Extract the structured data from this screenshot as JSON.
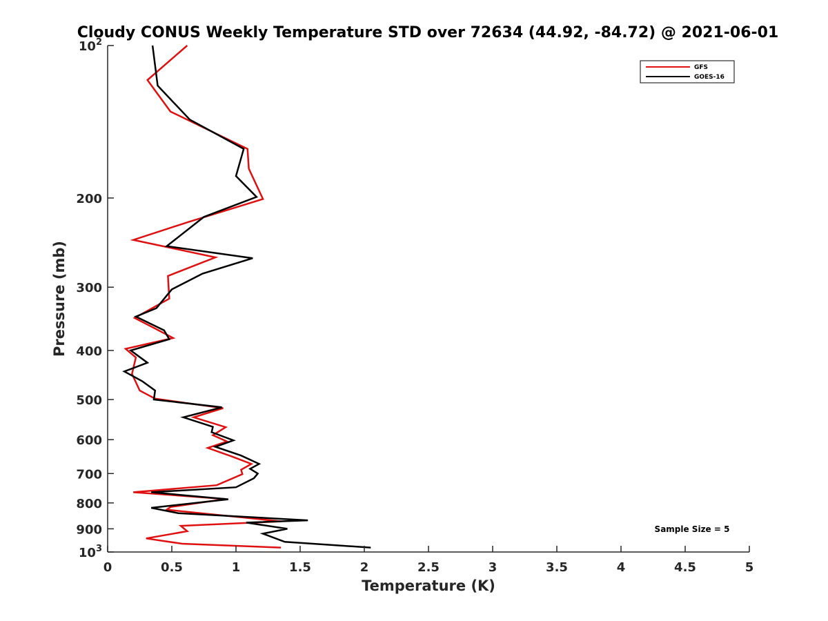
{
  "chart_data": {
    "type": "line",
    "title": "Cloudy CONUS Weekly Temperature STD over 72634 (44.92, -84.72) @ 2021-06-01",
    "xlabel": "Temperature (K)",
    "ylabel": "Pressure (mb)",
    "xlim": [
      0,
      5
    ],
    "ylim": [
      100,
      1000
    ],
    "yscale": "log",
    "y_reversed": true,
    "grid": false,
    "legend_placement": "top-right",
    "x_ticks": [
      "0",
      "0.5",
      "1",
      "1.5",
      "2",
      "2.5",
      "3",
      "3.5",
      "4",
      "4.5",
      "5"
    ],
    "y_ticks": [
      {
        "value": 100,
        "base": "10",
        "exp": "2"
      },
      {
        "value": 200,
        "label": "200"
      },
      {
        "value": 300,
        "label": "300"
      },
      {
        "value": 400,
        "label": "400"
      },
      {
        "value": 500,
        "label": "500"
      },
      {
        "value": 600,
        "label": "600"
      },
      {
        "value": 700,
        "label": "700"
      },
      {
        "value": 800,
        "label": "800"
      },
      {
        "value": 900,
        "label": "900"
      },
      {
        "value": 1000,
        "base": "10",
        "exp": "3"
      }
    ],
    "annotation": "Sample Size = 5",
    "series": [
      {
        "name": "GFS",
        "color": "#e01010",
        "points": [
          [
            0.62,
            100
          ],
          [
            0.31,
            117
          ],
          [
            0.49,
            135
          ],
          [
            1.09,
            160
          ],
          [
            1.1,
            175
          ],
          [
            1.21,
            201
          ],
          [
            0.63,
            223
          ],
          [
            0.2,
            242
          ],
          [
            0.84,
            262
          ],
          [
            0.47,
            285
          ],
          [
            0.48,
            316
          ],
          [
            0.21,
            345
          ],
          [
            0.37,
            362
          ],
          [
            0.51,
            378
          ],
          [
            0.14,
            397
          ],
          [
            0.22,
            413
          ],
          [
            0.19,
            445
          ],
          [
            0.25,
            480
          ],
          [
            0.37,
            498
          ],
          [
            0.9,
            520
          ],
          [
            0.67,
            542
          ],
          [
            0.92,
            567
          ],
          [
            0.82,
            588
          ],
          [
            0.93,
            605
          ],
          [
            0.78,
            623
          ],
          [
            0.97,
            648
          ],
          [
            1.12,
            670
          ],
          [
            1.04,
            688
          ],
          [
            1.05,
            702
          ],
          [
            0.85,
            738
          ],
          [
            0.2,
            762
          ],
          [
            0.92,
            786
          ],
          [
            0.49,
            815
          ],
          [
            0.46,
            825
          ],
          [
            1.35,
            870
          ],
          [
            0.57,
            888
          ],
          [
            0.62,
            910
          ],
          [
            0.3,
            940
          ],
          [
            0.58,
            963
          ],
          [
            1.35,
            980
          ]
        ]
      },
      {
        "name": "GOES-16",
        "color": "#000000",
        "points": [
          [
            0.35,
            100
          ],
          [
            0.39,
            120
          ],
          [
            0.64,
            140
          ],
          [
            1.06,
            160
          ],
          [
            1.0,
            181
          ],
          [
            1.16,
            199
          ],
          [
            0.75,
            218
          ],
          [
            0.46,
            249
          ],
          [
            1.13,
            263
          ],
          [
            0.74,
            282
          ],
          [
            0.5,
            303
          ],
          [
            0.38,
            330
          ],
          [
            0.22,
            343
          ],
          [
            0.44,
            365
          ],
          [
            0.48,
            380
          ],
          [
            0.18,
            400
          ],
          [
            0.31,
            423
          ],
          [
            0.13,
            440
          ],
          [
            0.27,
            460
          ],
          [
            0.37,
            480
          ],
          [
            0.36,
            500
          ],
          [
            0.89,
            518
          ],
          [
            0.59,
            542
          ],
          [
            0.82,
            566
          ],
          [
            0.81,
            580
          ],
          [
            0.98,
            602
          ],
          [
            0.84,
            620
          ],
          [
            1.04,
            645
          ],
          [
            1.18,
            670
          ],
          [
            1.11,
            685
          ],
          [
            1.17,
            700
          ],
          [
            1.14,
            715
          ],
          [
            1.0,
            745
          ],
          [
            0.34,
            762
          ],
          [
            0.94,
            787
          ],
          [
            0.34,
            818
          ],
          [
            0.55,
            838
          ],
          [
            1.56,
            866
          ],
          [
            1.08,
            875
          ],
          [
            1.4,
            900
          ],
          [
            1.21,
            920
          ],
          [
            1.38,
            955
          ],
          [
            2.05,
            980
          ]
        ]
      }
    ]
  }
}
